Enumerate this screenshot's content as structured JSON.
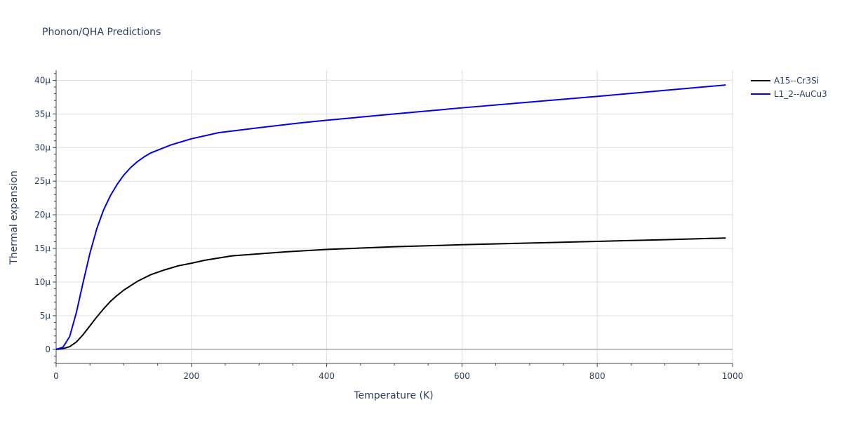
{
  "chart_data": {
    "type": "line",
    "title": "Phonon/QHA Predictions",
    "xlabel": "Temperature (K)",
    "ylabel": "Thermal expansion",
    "xlim": [
      0,
      1000
    ],
    "ylim": [
      -2.1e-06,
      4.15e-05
    ],
    "x_ticks": [
      0,
      200,
      400,
      600,
      800,
      1000
    ],
    "x_tick_labels": [
      "0",
      "200",
      "400",
      "600",
      "800",
      "1000"
    ],
    "y_ticks": [
      0,
      5e-06,
      1e-05,
      1.5e-05,
      2e-05,
      2.5e-05,
      3e-05,
      3.5e-05,
      4e-05
    ],
    "y_tick_labels": [
      "0",
      "5μ",
      "10μ",
      "15μ",
      "20μ",
      "25μ",
      "30μ",
      "35μ",
      "40μ"
    ],
    "grid": true,
    "legend_position": "top-right",
    "series": [
      {
        "name": "A15--Cr3Si",
        "color": "#000000",
        "x": [
          0,
          10,
          20,
          30,
          40,
          50,
          60,
          70,
          80,
          90,
          100,
          120,
          140,
          160,
          180,
          200,
          220,
          260,
          300,
          340,
          400,
          500,
          600,
          700,
          800,
          900,
          990
        ],
        "y": [
          0,
          1e-07,
          4e-07,
          1.1e-06,
          2.2e-06,
          3.5e-06,
          4.8e-06,
          6e-06,
          7.1e-06,
          8e-06,
          8.8e-06,
          1.01e-05,
          1.11e-05,
          1.18e-05,
          1.24e-05,
          1.28e-05,
          1.325e-05,
          1.39e-05,
          1.42e-05,
          1.45e-05,
          1.485e-05,
          1.525e-05,
          1.555e-05,
          1.58e-05,
          1.605e-05,
          1.63e-05,
          1.655e-05
        ]
      },
      {
        "name": "L1_2--AuCu3",
        "color": "#0000ee",
        "x": [
          0,
          10,
          20,
          30,
          40,
          50,
          60,
          70,
          80,
          90,
          100,
          110,
          120,
          130,
          140,
          150,
          170,
          200,
          240,
          300,
          360,
          400,
          500,
          600,
          700,
          800,
          900,
          990
        ],
        "y": [
          0,
          3e-07,
          1.9e-06,
          5.5e-06,
          1e-05,
          1.43e-05,
          1.79e-05,
          2.07e-05,
          2.28e-05,
          2.45e-05,
          2.59e-05,
          2.7e-05,
          2.79e-05,
          2.86e-05,
          2.92e-05,
          2.96e-05,
          3.04e-05,
          3.13e-05,
          3.22e-05,
          3.295e-05,
          3.365e-05,
          3.405e-05,
          3.5e-05,
          3.59e-05,
          3.675e-05,
          3.76e-05,
          3.85e-05,
          3.93e-05
        ]
      }
    ]
  }
}
